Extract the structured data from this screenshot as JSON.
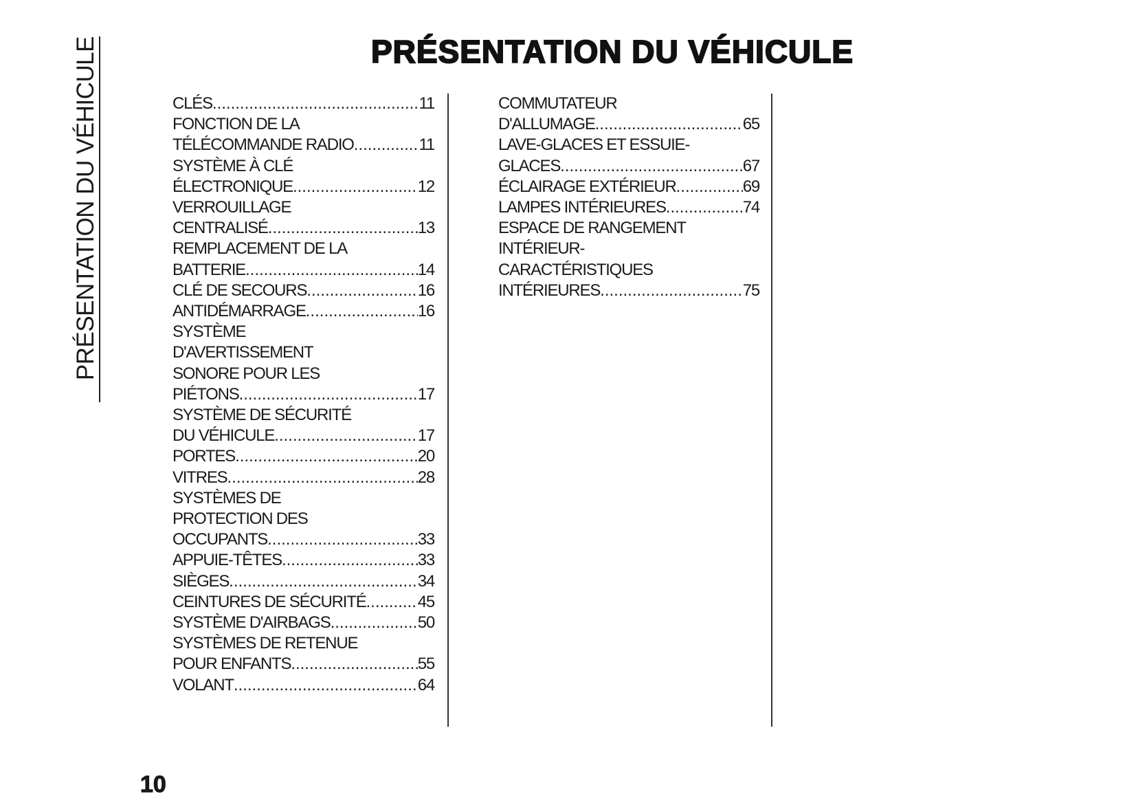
{
  "side_label": "PRÉSENTATION DU VÉHICULE",
  "title": "PRÉSENTATION DU VÉHICULE",
  "page_number": "10",
  "columns": [
    [
      {
        "lines": [],
        "last": "CLÉS",
        "page": "11"
      },
      {
        "lines": [
          "FONCTION DE LA"
        ],
        "last": "TÉLÉCOMMANDE RADIO",
        "page": "11"
      },
      {
        "lines": [
          "SYSTÈME À CLÉ"
        ],
        "last": "ÉLECTRONIQUE",
        "page": "12"
      },
      {
        "lines": [
          "VERROUILLAGE"
        ],
        "last": "CENTRALISÉ",
        "page": "13"
      },
      {
        "lines": [
          "REMPLACEMENT DE LA"
        ],
        "last": "BATTERIE",
        "page": "14"
      },
      {
        "lines": [],
        "last": "CLÉ DE SECOURS",
        "page": "16"
      },
      {
        "lines": [],
        "last": "ANTIDÉMARRAGE ",
        "page": "16"
      },
      {
        "lines": [
          "SYSTÈME",
          "D'AVERTISSEMENT",
          "SONORE POUR LES"
        ],
        "last": "PIÉTONS",
        "page": "17"
      },
      {
        "lines": [
          "SYSTÈME DE SÉCURITÉ"
        ],
        "last": "DU VÉHICULE",
        "page": "17"
      },
      {
        "lines": [],
        "last": "PORTES",
        "page": "20"
      },
      {
        "lines": [],
        "last": "VITRES",
        "page": "28"
      },
      {
        "lines": [
          "SYSTÈMES DE",
          "PROTECTION DES"
        ],
        "last": "OCCUPANTS",
        "page": "33"
      },
      {
        "lines": [],
        "last": "APPUIE-TÊTES",
        "page": "33"
      },
      {
        "lines": [],
        "last": "SIÈGES",
        "page": "34"
      },
      {
        "lines": [],
        "last": "CEINTURES DE SÉCURITÉ",
        "page": "45"
      },
      {
        "lines": [],
        "last": "SYSTÈME D'AIRBAGS",
        "page": "50"
      },
      {
        "lines": [
          "SYSTÈMES DE RETENUE"
        ],
        "last": "POUR ENFANTS ",
        "page": "55"
      },
      {
        "lines": [],
        "last": "VOLANT",
        "page": "64"
      }
    ],
    [
      {
        "lines": [
          "COMMUTATEUR"
        ],
        "last": "D'ALLUMAGE",
        "page": "65"
      },
      {
        "lines": [
          "LAVE-GLACES ET ESSUIE-"
        ],
        "last": "GLACES",
        "page": "67"
      },
      {
        "lines": [],
        "last": "ÉCLAIRAGE EXTÉRIEUR",
        "page": "69"
      },
      {
        "lines": [],
        "last": "LAMPES INTÉRIEURES",
        "page": "74"
      },
      {
        "lines": [
          "ESPACE DE RANGEMENT",
          "INTÉRIEUR-",
          "CARACTÉRISTIQUES"
        ],
        "last": "INTÉRIEURES",
        "page": "75"
      }
    ]
  ]
}
